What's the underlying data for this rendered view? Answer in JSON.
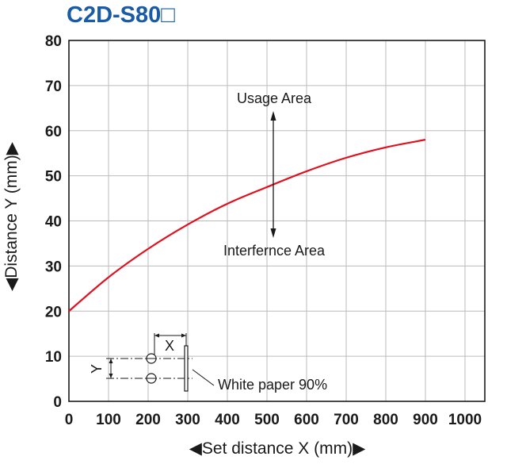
{
  "title": "C2D-S80□",
  "colors": {
    "title": "#1a5ba6",
    "curve": "#e0101e",
    "axis": "#1a1a1a",
    "grid": "#bbbbbb"
  },
  "chart_data": {
    "type": "line",
    "title": "C2D-S80□",
    "xlabel": "◀Set distance X (mm)▶",
    "ylabel": "◀Distance Y (mm)▶",
    "xlim": [
      0,
      1050
    ],
    "ylim": [
      0,
      80
    ],
    "x_ticks": [
      "0",
      "100",
      "200",
      "300",
      "400",
      "500",
      "600",
      "700",
      "800",
      "900",
      "1000"
    ],
    "y_ticks": [
      "0",
      "10",
      "20",
      "30",
      "40",
      "50",
      "60",
      "70",
      "80"
    ],
    "grid": true,
    "series": [
      {
        "x": [
          0,
          100,
          200,
          300,
          400,
          500,
          600,
          700,
          800,
          900
        ],
        "y": [
          20,
          27.5,
          33.8,
          39.2,
          43.8,
          47.5,
          51.0,
          54.0,
          56.3,
          58.0
        ]
      }
    ],
    "annotations": {
      "usage_area": "Usage Area",
      "interference_area": "Interfernce Area",
      "inset_x_label": "X",
      "inset_y_label": "Y",
      "inset_paper_label": "White paper 90%"
    }
  }
}
